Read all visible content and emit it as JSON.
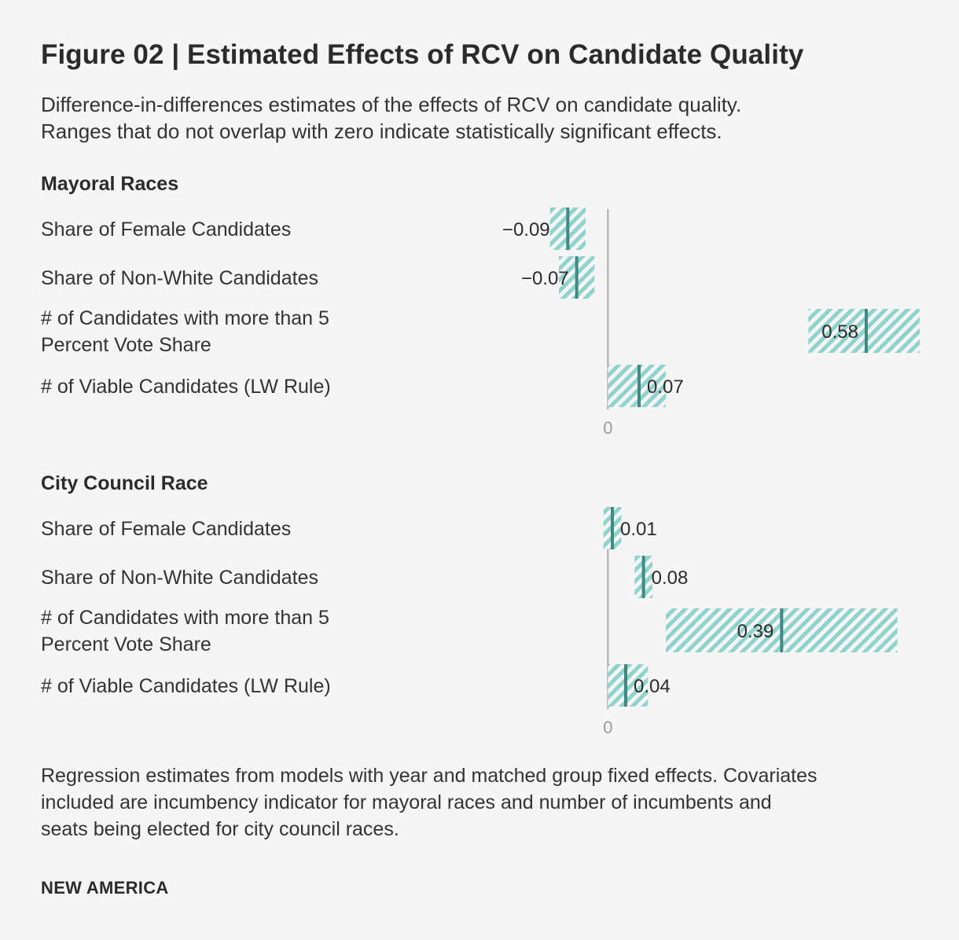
{
  "title": "Figure 02 | Estimated Effects of RCV on Candidate Quality",
  "subtitle_lines": [
    "Difference-in-differences estimates of the effects of RCV on candidate quality.",
    "Ranges that do not overlap with zero indicate statistically significant effects."
  ],
  "note_lines": [
    "Regression estimates from models with year and matched group fixed effects. Covariates",
    "included are incumbency indicator for mayoral races and number of incumbents and",
    "seats being elected for city council races."
  ],
  "source": "NEW AMERICA",
  "colors": {
    "range_fill": "#8fd3cc",
    "estimate_line": "#3f8b84",
    "zero_line": "#aaaaaa",
    "background": "#f5f5f5"
  },
  "chart_data": [
    {
      "type": "range",
      "title": "Mayoral Races",
      "zero_label": "0",
      "xlim": [
        -0.5,
        0.7
      ],
      "rows": [
        {
          "label": [
            "Share of Female Candidates"
          ],
          "estimate": -0.09,
          "value_label": "−0.09",
          "low": -0.13,
          "high": -0.05
        },
        {
          "label": [
            "Share of Non-White Candidates"
          ],
          "estimate": -0.07,
          "value_label": "−0.07",
          "low": -0.11,
          "high": -0.03
        },
        {
          "label": [
            "# of Candidates with more than 5",
            "Percent Vote Share"
          ],
          "estimate": 0.58,
          "value_label": "0.58",
          "low": 0.45,
          "high": 0.7
        },
        {
          "label": [
            "# of Viable Candidates (LW Rule)"
          ],
          "estimate": 0.07,
          "value_label": "0.07",
          "low": 0.0,
          "high": 0.13
        }
      ]
    },
    {
      "type": "range",
      "title": "City Council Race",
      "zero_label": "0",
      "xlim": [
        -0.5,
        0.7
      ],
      "rows": [
        {
          "label": [
            "Share of Female Candidates"
          ],
          "estimate": 0.01,
          "value_label": "0.01",
          "low": -0.01,
          "high": 0.03
        },
        {
          "label": [
            "Share of Non-White Candidates"
          ],
          "estimate": 0.08,
          "value_label": "0.08",
          "low": 0.06,
          "high": 0.1
        },
        {
          "label": [
            "# of Candidates with more than 5",
            "Percent Vote Share"
          ],
          "estimate": 0.39,
          "value_label": "0.39",
          "low": 0.13,
          "high": 0.65
        },
        {
          "label": [
            "# of Viable Candidates (LW Rule)"
          ],
          "estimate": 0.04,
          "value_label": "0.04",
          "low": 0.0,
          "high": 0.09
        }
      ]
    }
  ]
}
